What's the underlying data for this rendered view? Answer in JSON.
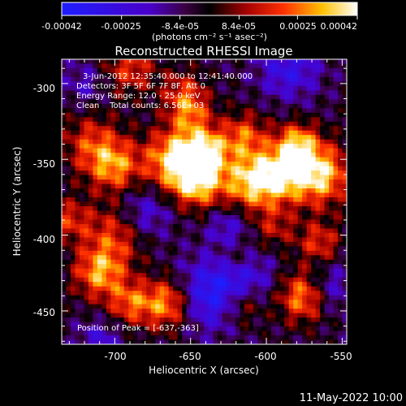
{
  "chart_data": {
    "type": "heatmap",
    "title": "Reconstructed RHESSI Image",
    "xlabel": "Heliocentric X (arcsec)",
    "ylabel": "Heliocentric Y (arcsec)",
    "x_ticks": [
      "-700",
      "-650",
      "-600",
      "-550"
    ],
    "y_ticks": [
      "-300",
      "-350",
      "-400",
      "-450"
    ],
    "xlim": [
      -735,
      -547
    ],
    "ylim": [
      -472,
      -284
    ],
    "colorscale": "hot (black-purple-red-orange-yellow-white)",
    "colorbar": {
      "ticks": [
        "-0.00042",
        "-0.00025",
        "-8.4e-05",
        "8.4e-05",
        "0.00025",
        "0.00042"
      ],
      "unit_label": "(photons cm⁻² s⁻¹ asec⁻²)",
      "range": [
        -0.00042,
        0.00042
      ]
    },
    "annotations": {
      "time_range": "3-Jun-2012 12:35:40.000 to 12:41:40.000",
      "detectors": "Detectors: 3F 5F 6F 7F 8F, Att 0",
      "energy_range": "Energy Range: 12.0 - 25.0 keV",
      "method_counts": "Clean    Total counts: 6.56E+03",
      "peak_position": "Position of Peak = [-637,-363]"
    },
    "peak": [
      -637,
      -363
    ]
  },
  "footer": {
    "date": "11-May-2022 10:00"
  }
}
